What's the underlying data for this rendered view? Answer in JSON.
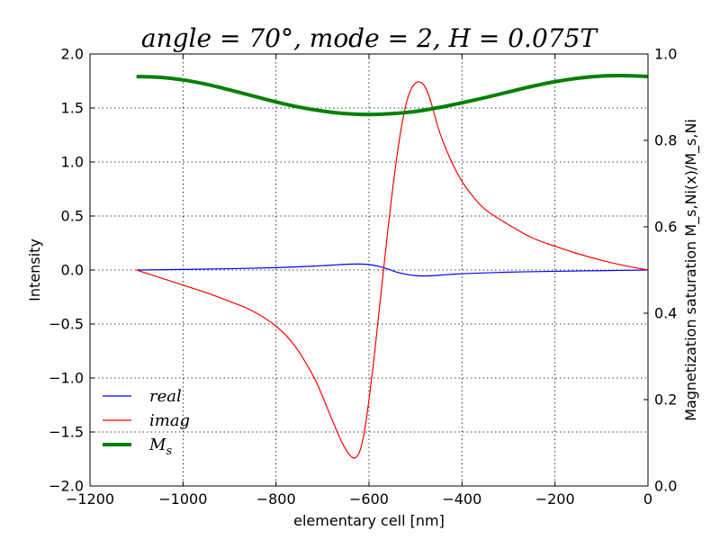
{
  "chart_data": {
    "type": "line",
    "title": "angle = 70°, mode = 2, H = 0.075T",
    "xlabel": "elementary cell [nm]",
    "ylabel": "Intensity",
    "y2label": "Magnetization saturation M_s,Ni(x)/M_s,Ni",
    "xlim": [
      -1200,
      0
    ],
    "ylim": [
      -2.0,
      2.0
    ],
    "y2lim": [
      0.0,
      1.0
    ],
    "grid": true,
    "legend_position": "lower-left",
    "xticks": [
      "−1200",
      "−1000",
      "−800",
      "−600",
      "−400",
      "−200",
      "0"
    ],
    "xtick_values": [
      -1200,
      -1000,
      -800,
      -600,
      -400,
      -200,
      0
    ],
    "yticks": [
      "−2.0",
      "−1.5",
      "−1.0",
      "−0.5",
      "0.0",
      "0.5",
      "1.0",
      "1.5",
      "2.0"
    ],
    "ytick_values": [
      -2.0,
      -1.5,
      -1.0,
      -0.5,
      0.0,
      0.5,
      1.0,
      1.5,
      2.0
    ],
    "y2ticks": [
      "0.0",
      "0.2",
      "0.4",
      "0.6",
      "0.8",
      "1.0"
    ],
    "y2tick_values": [
      0.0,
      0.2,
      0.4,
      0.6,
      0.8,
      1.0
    ],
    "series": [
      {
        "name": "real",
        "legend_label": "real",
        "axis": "left",
        "color": "#0000ff",
        "x": [
          -1100,
          -1000,
          -900,
          -800,
          -750,
          -700,
          -680,
          -660,
          -640,
          -620,
          -600,
          -580,
          -560,
          -540,
          -520,
          -500,
          -480,
          -460,
          -440,
          -400,
          -300,
          -200,
          -100,
          0
        ],
        "y": [
          0.0,
          0.005,
          0.012,
          0.022,
          0.03,
          0.04,
          0.045,
          0.05,
          0.054,
          0.055,
          0.05,
          0.035,
          0.01,
          -0.02,
          -0.04,
          -0.052,
          -0.055,
          -0.052,
          -0.045,
          -0.035,
          -0.02,
          -0.012,
          -0.006,
          0.0
        ]
      },
      {
        "name": "imag",
        "legend_label": "imag",
        "axis": "left",
        "color": "#ff0000",
        "x": [
          -1100,
          -1050,
          -1000,
          -950,
          -900,
          -850,
          -800,
          -760,
          -720,
          -700,
          -680,
          -660,
          -650,
          -640,
          -630,
          -620,
          -610,
          -600,
          -590,
          -580,
          -570,
          -560,
          -550,
          -540,
          -530,
          -520,
          -510,
          -500,
          -490,
          -480,
          -470,
          -460,
          -450,
          -440,
          -420,
          -400,
          -380,
          -350,
          -300,
          -250,
          -200,
          -150,
          -100,
          -50,
          0
        ],
        "y": [
          0.0,
          -0.07,
          -0.14,
          -0.21,
          -0.29,
          -0.38,
          -0.52,
          -0.7,
          -0.98,
          -1.17,
          -1.38,
          -1.58,
          -1.66,
          -1.72,
          -1.74,
          -1.68,
          -1.5,
          -1.2,
          -0.85,
          -0.45,
          -0.05,
          0.35,
          0.72,
          1.05,
          1.33,
          1.54,
          1.67,
          1.73,
          1.74,
          1.7,
          1.6,
          1.45,
          1.3,
          1.18,
          0.98,
          0.82,
          0.7,
          0.56,
          0.42,
          0.3,
          0.22,
          0.15,
          0.09,
          0.04,
          0.0
        ]
      },
      {
        "name": "M_s",
        "legend_label": "M",
        "legend_subscript": "s",
        "axis": "right",
        "color": "#008000",
        "x": [
          -1100,
          -1050,
          -1000,
          -950,
          -900,
          -850,
          -800,
          -750,
          -700,
          -650,
          -600,
          -550,
          -500,
          -450,
          -400,
          -350,
          -300,
          -250,
          -200,
          -150,
          -100,
          -50,
          0
        ],
        "y": [
          0.948,
          0.946,
          0.94,
          0.93,
          0.917,
          0.903,
          0.889,
          0.877,
          0.868,
          0.862,
          0.86,
          0.862,
          0.867,
          0.876,
          0.887,
          0.899,
          0.912,
          0.925,
          0.936,
          0.944,
          0.949,
          0.95,
          0.948
        ]
      }
    ]
  }
}
